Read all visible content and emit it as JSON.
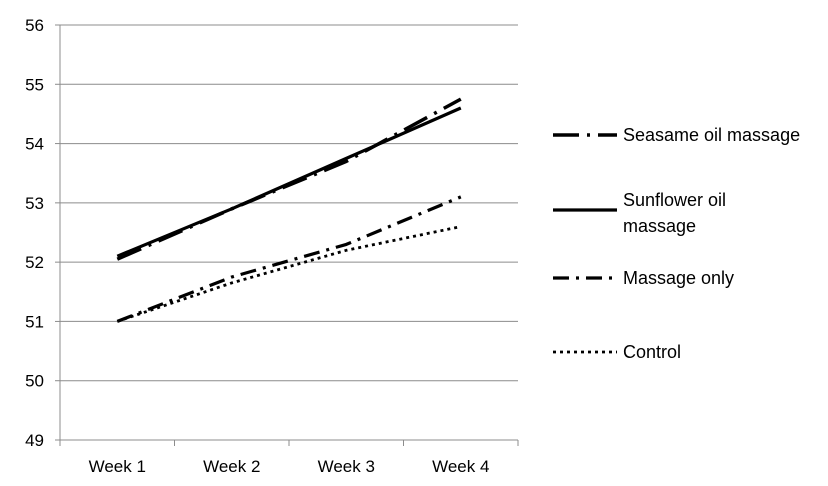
{
  "chart_data": {
    "type": "line",
    "title": "",
    "xlabel": "",
    "ylabel": "",
    "categories": [
      "Week 1",
      "Week 2",
      "Week 3",
      "Week 4"
    ],
    "ylim": [
      49,
      56
    ],
    "yticks": [
      49,
      50,
      51,
      52,
      53,
      54,
      55,
      56
    ],
    "grid": "horizontal",
    "legend_position": "right",
    "series": [
      {
        "name": "Seasame oil massage",
        "values": [
          52.05,
          52.9,
          53.7,
          54.75
        ],
        "style": "long-dash-dot",
        "color": "#000000"
      },
      {
        "name": "Sunflower oil massage",
        "values": [
          52.1,
          52.9,
          53.75,
          54.6
        ],
        "style": "solid",
        "color": "#000000"
      },
      {
        "name": "Massage only",
        "values": [
          51.0,
          51.75,
          52.3,
          53.1
        ],
        "style": "dash-dot",
        "color": "#000000"
      },
      {
        "name": "Control",
        "values": [
          51.0,
          51.65,
          52.2,
          52.6
        ],
        "style": "dotted",
        "color": "#000000"
      }
    ]
  }
}
